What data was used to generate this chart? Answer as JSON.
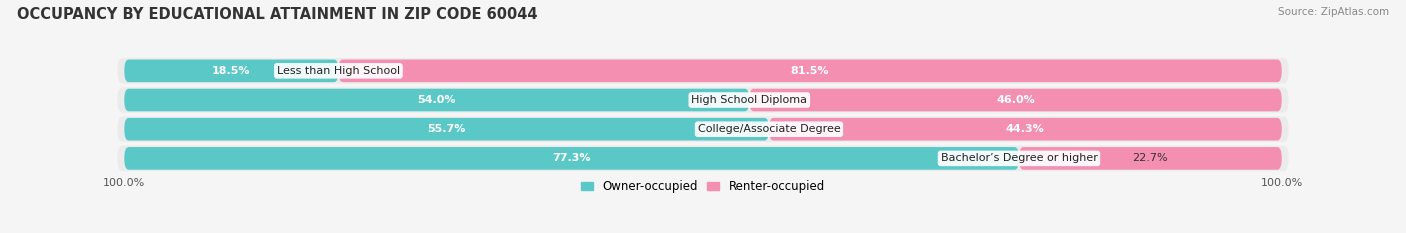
{
  "title": "OCCUPANCY BY EDUCATIONAL ATTAINMENT IN ZIP CODE 60044",
  "source": "Source: ZipAtlas.com",
  "categories": [
    "Less than High School",
    "High School Diploma",
    "College/Associate Degree",
    "Bachelor’s Degree or higher"
  ],
  "owner_pct": [
    18.5,
    54.0,
    55.7,
    77.3
  ],
  "renter_pct": [
    81.5,
    46.0,
    44.3,
    22.7
  ],
  "owner_color": "#5bc8c8",
  "renter_color": "#f48fb1",
  "bg_color": "#f5f5f5",
  "bar_bg_color": "#e2e2e2",
  "row_bg_color": "#ebebeb",
  "title_fontsize": 10.5,
  "label_fontsize": 8.0,
  "legend_fontsize": 8.5,
  "source_fontsize": 7.5,
  "axis_label": "100.0%"
}
